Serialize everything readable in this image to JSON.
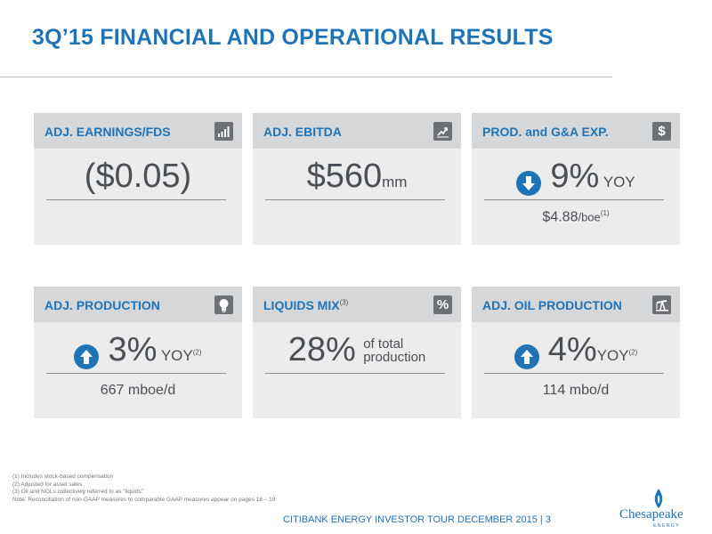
{
  "header": {
    "title": "3Q’15 FINANCIAL AND OPERATIONAL RESULTS"
  },
  "cards": [
    {
      "title": "ADJ. EARNINGS/FDS",
      "value": "($0.05)",
      "icon": "bar-chart-icon"
    },
    {
      "title": "ADJ. EBITDA",
      "value": "$560",
      "unit": "mm",
      "icon": "trend-up-icon"
    },
    {
      "title": "PROD. and G&A EXP.",
      "value": "9%",
      "unit": "YOY",
      "sub_value": "$4.88",
      "sub_unit": "/boe",
      "sub_note": "(1)",
      "direction": "down",
      "icon": "dollar-icon"
    },
    {
      "title": "ADJ. PRODUCTION",
      "value": "3%",
      "unit": "YOY",
      "note": "(2)",
      "sub_value": "667",
      "sub_unit": "mboe/d",
      "direction": "up",
      "icon": "lightbulb-icon"
    },
    {
      "title": "LIQUIDS MIX",
      "title_note": "(3)",
      "value": "28%",
      "unit_line1": "of total",
      "unit_line2": "production",
      "icon": "percent-icon"
    },
    {
      "title": "ADJ. OIL PRODUCTION",
      "value": "4%",
      "unit": "YOY",
      "note": "(2)",
      "sub_value": "114",
      "sub_unit": "mbo/d",
      "direction": "up",
      "icon": "oil-pump-icon"
    }
  ],
  "footnotes": [
    "(1)   Includes stock-based compensation",
    "(2)   Adjusted for asset sales",
    "(3)   Oil and NGLs collectively referred to as “liquids”",
    "Note: Reconciliation of non-GAAP measures to comparable GAAP measures appear on pages 18 – 19"
  ],
  "footer": {
    "text": "CITIBANK ENERGY INVESTOR TOUR DECEMBER 2015  |  3"
  },
  "logo": {
    "name": "Chesapeake",
    "sub": "ENERGY"
  },
  "colors": {
    "accent": "#1f74b8",
    "card_bg": "#ececec",
    "card_header": "#d6d7d9",
    "icon_bg": "#6d7075"
  }
}
